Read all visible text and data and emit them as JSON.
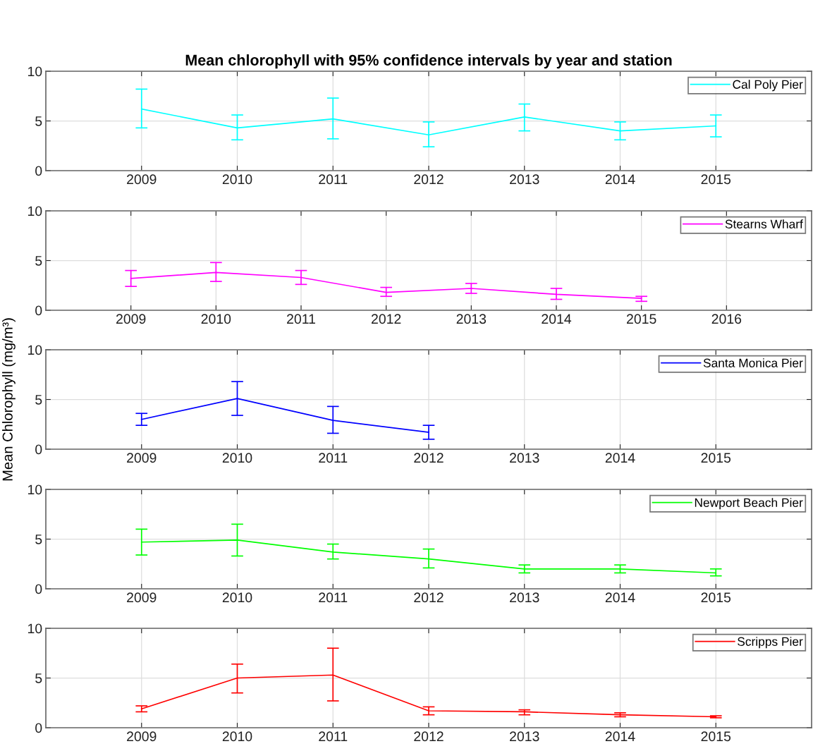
{
  "chart_data": [
    {
      "type": "line",
      "title": "Mean chlorophyll with 95% confidence intervals by year and station",
      "x": [
        2009,
        2010,
        2011,
        2012,
        2013,
        2014,
        2015
      ],
      "xlim": [
        2008,
        2016
      ],
      "xticks": [
        2009,
        2010,
        2011,
        2012,
        2013,
        2014,
        2015
      ],
      "ylim": [
        0,
        10
      ],
      "yticks": [
        0,
        5,
        10
      ],
      "grid": true,
      "legend": "top right",
      "series": [
        {
          "name": "Cal Poly Pier",
          "color": "#00ffff",
          "values": [
            6.2,
            4.3,
            5.2,
            3.6,
            5.4,
            4.0,
            4.5
          ],
          "errors": [
            [
              4.3,
              8.2
            ],
            [
              3.1,
              5.6
            ],
            [
              3.2,
              7.3
            ],
            [
              2.4,
              4.9
            ],
            [
              4.0,
              6.7
            ],
            [
              3.1,
              4.9
            ],
            [
              3.4,
              5.6
            ]
          ]
        }
      ]
    },
    {
      "type": "line",
      "x": [
        2009,
        2010,
        2011,
        2012,
        2013,
        2014,
        2015
      ],
      "xlim": [
        2008,
        2017
      ],
      "xticks": [
        2009,
        2010,
        2011,
        2012,
        2013,
        2014,
        2015,
        2016
      ],
      "ylim": [
        0,
        10
      ],
      "yticks": [
        0,
        5,
        10
      ],
      "grid": true,
      "legend": "top right",
      "series": [
        {
          "name": "Stearns Wharf",
          "color": "#ff00ff",
          "values": [
            3.2,
            3.8,
            3.3,
            1.8,
            2.2,
            1.6,
            1.2
          ],
          "errors": [
            [
              2.4,
              4.0
            ],
            [
              2.9,
              4.8
            ],
            [
              2.6,
              4.0
            ],
            [
              1.4,
              2.3
            ],
            [
              1.7,
              2.7
            ],
            [
              1.1,
              2.2
            ],
            [
              0.9,
              1.4
            ]
          ]
        }
      ]
    },
    {
      "type": "line",
      "ylabel": "Mean Chlorophyll (mg/m³)",
      "x": [
        2009,
        2010,
        2011,
        2012
      ],
      "xlim": [
        2008,
        2016
      ],
      "xticks": [
        2009,
        2010,
        2011,
        2012,
        2013,
        2014,
        2015
      ],
      "ylim": [
        0,
        10
      ],
      "yticks": [
        0,
        5,
        10
      ],
      "grid": true,
      "legend": "top right",
      "series": [
        {
          "name": "Santa Monica Pier",
          "color": "#0000ff",
          "values": [
            3.0,
            5.1,
            2.9,
            1.7
          ],
          "errors": [
            [
              2.4,
              3.6
            ],
            [
              3.4,
              6.8
            ],
            [
              1.6,
              4.3
            ],
            [
              1.0,
              2.4
            ]
          ]
        }
      ]
    },
    {
      "type": "line",
      "x": [
        2009,
        2010,
        2011,
        2012,
        2013,
        2014,
        2015
      ],
      "xlim": [
        2008,
        2016
      ],
      "xticks": [
        2009,
        2010,
        2011,
        2012,
        2013,
        2014,
        2015
      ],
      "ylim": [
        0,
        10
      ],
      "yticks": [
        0,
        5,
        10
      ],
      "grid": true,
      "legend": "top right",
      "series": [
        {
          "name": "Newport Beach Pier",
          "color": "#00ff00",
          "values": [
            4.7,
            4.9,
            3.7,
            3.0,
            2.0,
            2.0,
            1.6
          ],
          "errors": [
            [
              3.4,
              6.0
            ],
            [
              3.3,
              6.5
            ],
            [
              3.0,
              4.5
            ],
            [
              2.1,
              4.0
            ],
            [
              1.6,
              2.4
            ],
            [
              1.6,
              2.4
            ],
            [
              1.3,
              2.0
            ]
          ]
        }
      ]
    },
    {
      "type": "line",
      "x": [
        2009,
        2010,
        2011,
        2012,
        2013,
        2014,
        2015
      ],
      "xlim": [
        2008,
        2016
      ],
      "xticks": [
        2009,
        2010,
        2011,
        2012,
        2013,
        2014,
        2015
      ],
      "ylim": [
        0,
        10
      ],
      "yticks": [
        0,
        5,
        10
      ],
      "grid": true,
      "legend": "top right",
      "series": [
        {
          "name": "Scripps Pier",
          "color": "#ff0000",
          "values": [
            1.9,
            5.0,
            5.3,
            1.7,
            1.6,
            1.3,
            1.1
          ],
          "errors": [
            [
              1.6,
              2.2
            ],
            [
              3.5,
              6.4
            ],
            [
              2.7,
              8.0
            ],
            [
              1.3,
              2.1
            ],
            [
              1.3,
              1.8
            ],
            [
              1.1,
              1.5
            ],
            [
              1.0,
              1.2
            ]
          ]
        }
      ]
    }
  ]
}
